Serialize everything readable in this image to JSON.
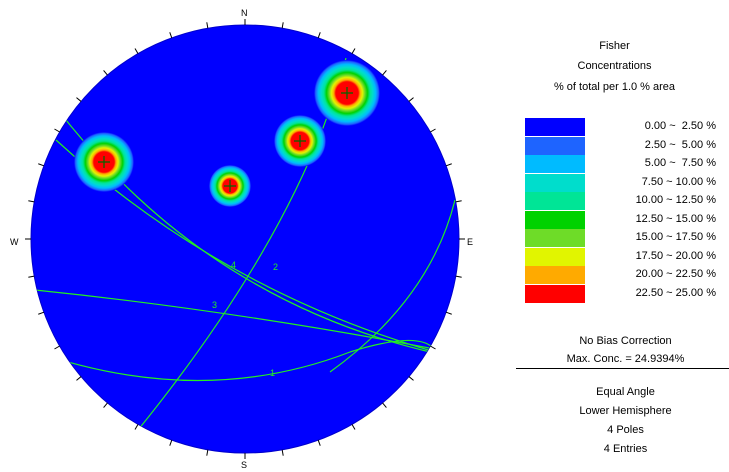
{
  "directions": {
    "north": "N",
    "south": "S",
    "east": "E",
    "west": "W"
  },
  "legend": {
    "title_lines": [
      "Fisher",
      "Concentrations",
      "% of total per 1.0 % area"
    ],
    "bins": [
      {
        "label": "0.00 ~  2.50 %",
        "color": "#0000ff"
      },
      {
        "label": "2.50 ~  5.00 %",
        "color": "#1e64ff"
      },
      {
        "label": "5.00 ~  7.50 %",
        "color": "#00bbff"
      },
      {
        "label": "7.50 ~ 10.00 %",
        "color": "#00ddcc"
      },
      {
        "label": "10.00 ~ 12.50 %",
        "color": "#00e596"
      },
      {
        "label": "12.50 ~ 15.00 %",
        "color": "#00d200"
      },
      {
        "label": "15.00 ~ 17.50 %",
        "color": "#6edc28"
      },
      {
        "label": "17.50 ~ 20.00 %",
        "color": "#e1f500"
      },
      {
        "label": "20.00 ~ 22.50 %",
        "color": "#ffaa00"
      },
      {
        "label": "22.50 ~ 25.00 %",
        "color": "#ff0000"
      }
    ]
  },
  "bias_correction": "No Bias Correction",
  "max_conc": "Max. Conc. = 24.9394%",
  "projection": "Equal Angle",
  "hemisphere": "Lower Hemisphere",
  "poles_count": "4 Poles",
  "entries_count": "4 Entries",
  "plane_labels": [
    "1",
    "2",
    "3",
    "4"
  ],
  "colors": {
    "background": "#0000ff",
    "great_circle": "#22ee22",
    "pole_marker": "#006600"
  }
}
